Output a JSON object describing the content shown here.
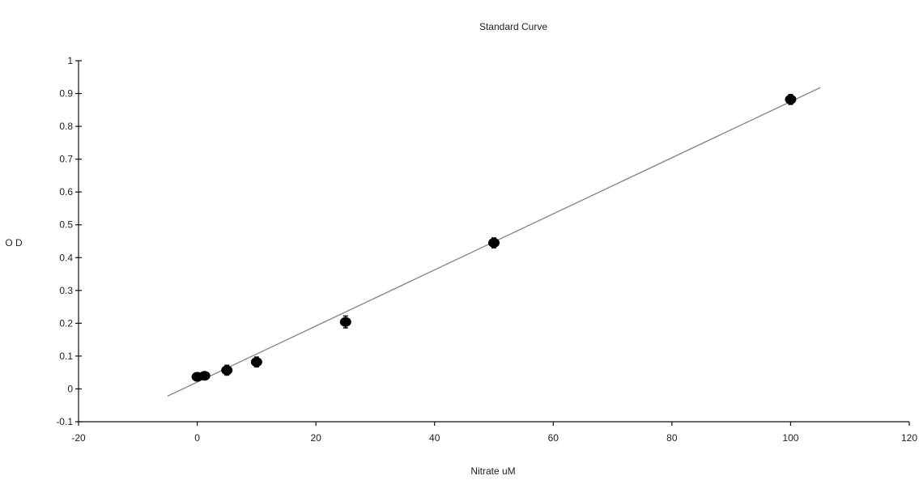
{
  "chart_data": {
    "type": "scatter",
    "title": "Standard Curve",
    "xlabel": "Nitrate uM",
    "ylabel": "O D",
    "xlim": [
      -20,
      120
    ],
    "ylim": [
      -0.1,
      1
    ],
    "x_ticks": [
      -20,
      0,
      20,
      40,
      60,
      80,
      100,
      120
    ],
    "y_ticks": [
      -0.1,
      0,
      0.1,
      0.2,
      0.3,
      0.4,
      0.5,
      0.6,
      0.7,
      0.8,
      0.9,
      1
    ],
    "x_tick_labels": [
      "-20",
      "0",
      "20",
      "40",
      "60",
      "80",
      "100",
      "120"
    ],
    "y_tick_labels": [
      "-0.1",
      "0",
      "0.1",
      "0.2",
      "0.3",
      "0.4",
      "0.5",
      "0.6",
      "0.7",
      "0.8",
      "0.9",
      "1"
    ],
    "grid": false,
    "legend": "none",
    "series": [
      {
        "points": [
          {
            "x": 0,
            "y": 0.037,
            "err": 0.012
          },
          {
            "x": 1.25,
            "y": 0.04,
            "err": 0.01
          },
          {
            "x": 5,
            "y": 0.057,
            "err": 0.015
          },
          {
            "x": 10,
            "y": 0.082,
            "err": 0.015
          },
          {
            "x": 25,
            "y": 0.204,
            "err": 0.018
          },
          {
            "x": 50,
            "y": 0.445,
            "err": 0.015
          },
          {
            "x": 100,
            "y": 0.882,
            "err": 0.015
          }
        ]
      }
    ],
    "fit_line": {
      "x_start": -5,
      "y_start": -0.022,
      "x_end": 105,
      "y_end": 0.918
    }
  }
}
